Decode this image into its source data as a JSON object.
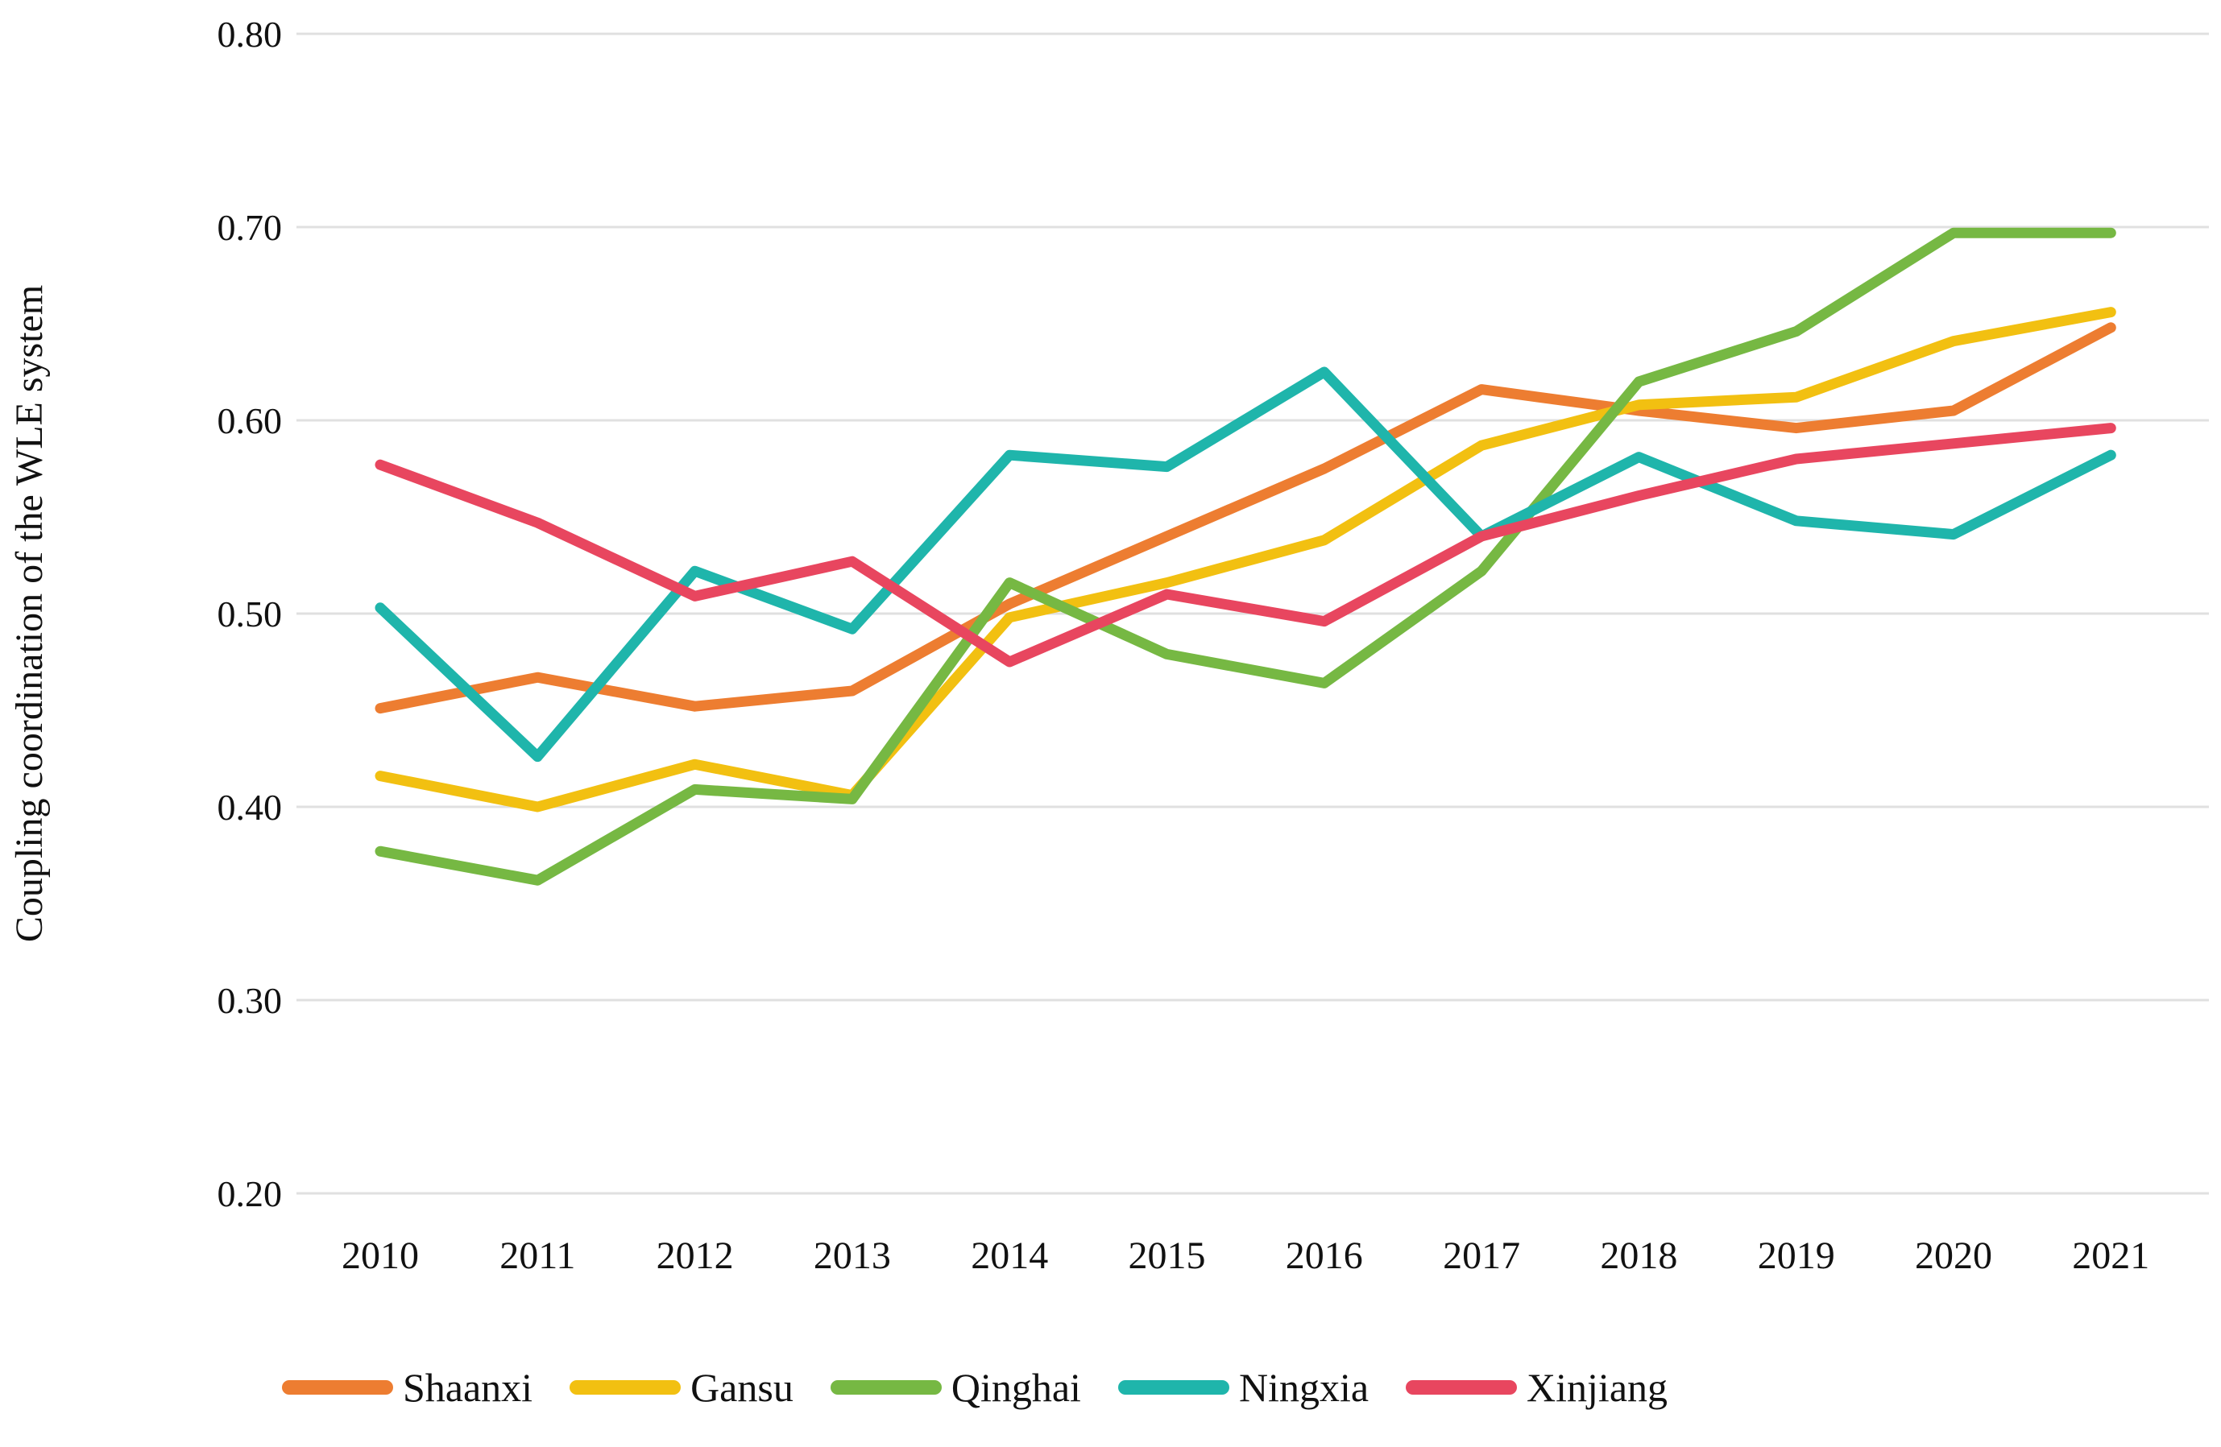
{
  "chart_data": {
    "type": "line",
    "title": "",
    "ylabel": "Coupling coordination of the WLE system",
    "xlabel": "",
    "categories": [
      "2010",
      "2011",
      "2012",
      "2013",
      "2014",
      "2015",
      "2016",
      "2017",
      "2018",
      "2019",
      "2020",
      "2021"
    ],
    "yticks": [
      {
        "value": 0.8,
        "label": "0.80"
      },
      {
        "value": 0.7,
        "label": "0.70"
      },
      {
        "value": 0.6,
        "label": "0.60"
      },
      {
        "value": 0.5,
        "label": "0.50"
      },
      {
        "value": 0.4,
        "label": "0.40"
      },
      {
        "value": 0.3,
        "label": "0.30"
      },
      {
        "value": 0.2,
        "label": "0.20"
      }
    ],
    "ylim": [
      0.2,
      0.8
    ],
    "grid": "horizontal",
    "grid_color": "#E0E0E0",
    "background_color": "#FFFFFF",
    "text_color": "#111111",
    "legend_position": "bottom",
    "series": [
      {
        "name": "Shaanxi",
        "color": "#ED7D31",
        "values": [
          0.451,
          0.467,
          0.452,
          0.46,
          0.505,
          0.54,
          0.575,
          0.616,
          0.605,
          0.596,
          0.605,
          0.648
        ]
      },
      {
        "name": "Gansu",
        "color": "#F2C011",
        "values": [
          0.416,
          0.4,
          0.422,
          0.406,
          0.498,
          0.516,
          0.538,
          0.587,
          0.608,
          0.612,
          0.641,
          0.656
        ]
      },
      {
        "name": "Qinghai",
        "color": "#76B843",
        "values": [
          0.377,
          0.362,
          0.409,
          0.404,
          0.516,
          0.479,
          0.464,
          0.522,
          0.62,
          0.646,
          0.697,
          0.697
        ]
      },
      {
        "name": "Ningxia",
        "color": "#1FB5AB",
        "values": [
          0.503,
          0.426,
          0.522,
          0.492,
          0.582,
          0.576,
          0.625,
          0.54,
          0.581,
          0.548,
          0.541,
          0.582
        ]
      },
      {
        "name": "Xinjiang",
        "color": "#E8465F",
        "values": [
          0.577,
          0.547,
          0.509,
          0.527,
          0.475,
          0.51,
          0.496,
          0.54,
          0.561,
          0.58,
          0.588,
          0.596
        ]
      }
    ]
  }
}
